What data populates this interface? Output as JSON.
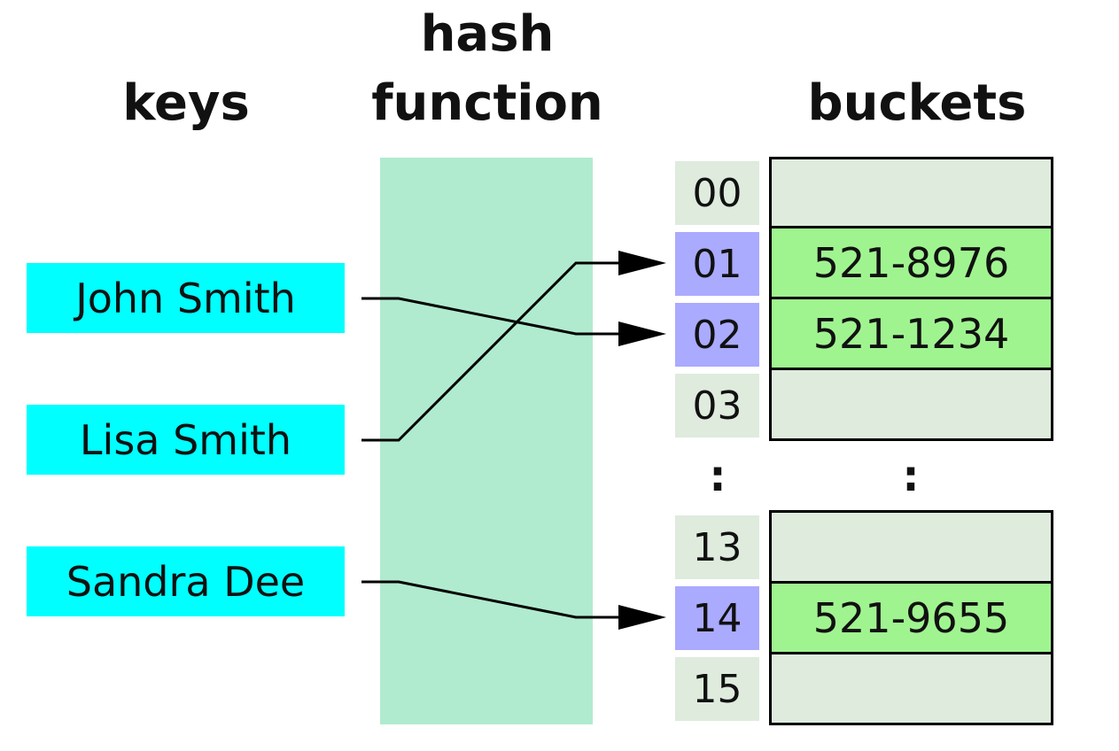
{
  "headings": {
    "keys": "keys",
    "hash_function_line1": "hash",
    "hash_function_line2": "function",
    "buckets": "buckets"
  },
  "keys": [
    {
      "label": "John Smith",
      "bucket": "02"
    },
    {
      "label": "Lisa Smith",
      "bucket": "01"
    },
    {
      "label": "Sandra Dee",
      "bucket": "14"
    }
  ],
  "indices": [
    "00",
    "01",
    "02",
    "03",
    "13",
    "14",
    "15"
  ],
  "buckets": [
    {
      "index": "00",
      "value": ""
    },
    {
      "index": "01",
      "value": "521-8976"
    },
    {
      "index": "02",
      "value": "521-1234"
    },
    {
      "index": "03",
      "value": ""
    },
    {
      "index": "13",
      "value": ""
    },
    {
      "index": "14",
      "value": "521-9655"
    },
    {
      "index": "15",
      "value": ""
    }
  ],
  "ellipsis": ":",
  "colors": {
    "key_fill": "#00ffff",
    "hash_band": "#b0ebcf",
    "index_default": "#deebdd",
    "index_highlight": "#aaaaff",
    "bucket_empty": "#deebdd",
    "bucket_filled": "#a0f490",
    "arrow": "#000000"
  }
}
